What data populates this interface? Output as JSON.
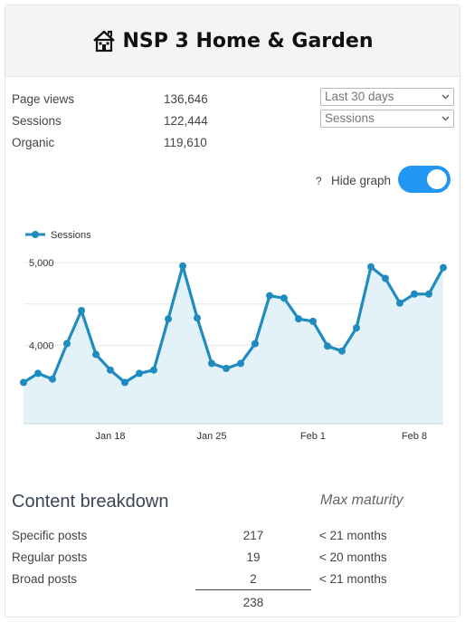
{
  "header": {
    "title": "NSP 3 Home & Garden",
    "icon": "house-icon"
  },
  "stats": [
    {
      "label": "Page views",
      "value": "136,646"
    },
    {
      "label": "Sessions",
      "value": "122,444"
    },
    {
      "label": "Organic",
      "value": "119,610"
    }
  ],
  "filters": {
    "range": "Last 30 days",
    "metric": "Sessions"
  },
  "graph_toggle": {
    "help": "?",
    "label": "Hide graph",
    "on": true
  },
  "chart_data": {
    "type": "line",
    "legend_position": "top-left",
    "grid": true,
    "series": [
      {
        "name": "Sessions",
        "color": "#1f8bbf",
        "fill": "#e3f1f8",
        "values": [
          3550,
          3660,
          3590,
          4020,
          4420,
          3890,
          3700,
          3550,
          3660,
          3700,
          4320,
          4960,
          4330,
          3780,
          3720,
          3780,
          4020,
          4600,
          4570,
          4320,
          4290,
          3990,
          3930,
          4210,
          4950,
          4810,
          4510,
          4620,
          4620,
          4940
        ]
      }
    ],
    "x_tick_labels": [
      {
        "label": "Jan 18",
        "index": 6
      },
      {
        "label": "Jan 25",
        "index": 13
      },
      {
        "label": "Feb 1",
        "index": 20
      },
      {
        "label": "Feb 8",
        "index": 27
      }
    ],
    "y_tick_labels": [
      {
        "label": "5,000",
        "value": 5000
      },
      {
        "label": "4,000",
        "value": 4000
      }
    ],
    "ylim": [
      3050,
      5100
    ]
  },
  "content_breakdown": {
    "title": "Content breakdown",
    "maturity_header": "Max maturity",
    "rows": [
      {
        "label": "Specific posts",
        "count": "217",
        "maturity": "< 21 months"
      },
      {
        "label": "Regular posts",
        "count": "19",
        "maturity": "< 20 months"
      },
      {
        "label": "Broad posts",
        "count": "2",
        "maturity": "< 21 months"
      }
    ],
    "total": "238"
  }
}
